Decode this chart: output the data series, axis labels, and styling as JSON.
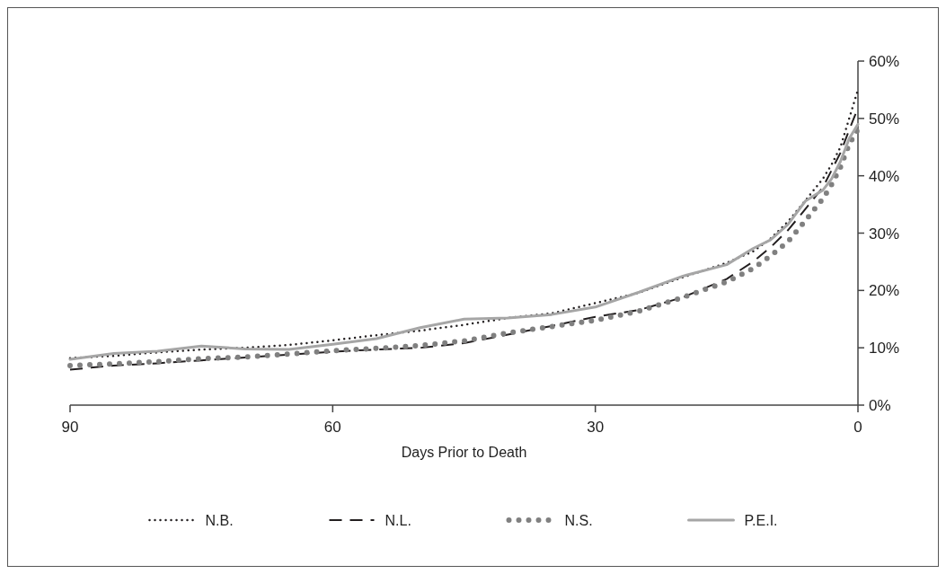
{
  "chart_data": {
    "type": "line",
    "xlabel": "Days Prior to Death",
    "x": [
      90,
      85,
      80,
      75,
      70,
      65,
      60,
      55,
      50,
      45,
      40,
      35,
      30,
      25,
      20,
      15,
      12,
      10,
      8,
      6,
      4,
      3,
      2,
      1,
      0
    ],
    "xlim": [
      90,
      0
    ],
    "xticks": [
      90,
      60,
      30,
      0
    ],
    "ylim": [
      0,
      60
    ],
    "yticks": [
      {
        "value": 0,
        "label": "0%"
      },
      {
        "value": 10,
        "label": "10%"
      },
      {
        "value": 20,
        "label": "20%"
      },
      {
        "value": 30,
        "label": "30%"
      },
      {
        "value": 40,
        "label": "40%"
      },
      {
        "value": 50,
        "label": "50%"
      },
      {
        "value": 60,
        "label": "60%"
      }
    ],
    "grid": false,
    "legend": "bottom",
    "marker": "none",
    "series": [
      {
        "name": "N.B.",
        "color": "#231f20",
        "line_style": "dotted",
        "values": [
          8.2,
          8.6,
          9.2,
          9.7,
          10.0,
          10.5,
          11.3,
          12.2,
          13.0,
          14.0,
          15.2,
          16.0,
          17.8,
          19.6,
          22.3,
          24.8,
          26.8,
          29.0,
          32.0,
          35.7,
          39.5,
          42.0,
          45.0,
          50.0,
          55.0
        ]
      },
      {
        "name": "N.L.",
        "color": "#231f20",
        "line_style": "dashed",
        "values": [
          6.2,
          6.9,
          7.3,
          7.8,
          8.3,
          8.8,
          9.3,
          9.7,
          10.0,
          10.8,
          12.3,
          13.8,
          15.4,
          16.6,
          18.8,
          22.0,
          25.0,
          27.5,
          30.5,
          34.2,
          38.0,
          41.0,
          44.0,
          48.0,
          51.8
        ]
      },
      {
        "name": "N.S.",
        "color": "#808080",
        "line_style": "dotted",
        "values": [
          6.9,
          7.2,
          7.6,
          8.1,
          8.4,
          8.9,
          9.5,
          9.9,
          10.4,
          11.2,
          12.6,
          13.7,
          14.8,
          16.4,
          18.8,
          21.5,
          23.8,
          26.0,
          28.5,
          32.2,
          36.0,
          38.5,
          41.5,
          45.5,
          48.1
        ]
      },
      {
        "name": "P.E.I.",
        "color": "#a6a6a6",
        "line_style": "solid",
        "values": [
          8.0,
          9.0,
          9.4,
          10.3,
          9.8,
          9.7,
          10.6,
          11.6,
          13.5,
          15.0,
          15.2,
          15.8,
          17.1,
          19.7,
          22.5,
          24.5,
          27.3,
          28.8,
          31.5,
          35.6,
          37.5,
          39.5,
          42.5,
          46.5,
          49.0
        ]
      }
    ]
  }
}
